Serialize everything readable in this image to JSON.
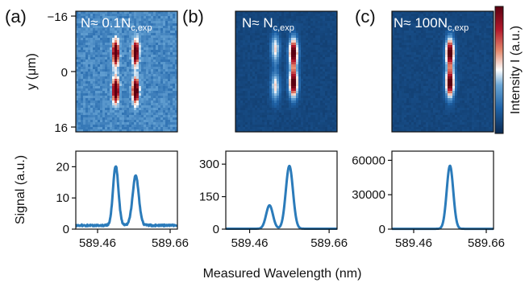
{
  "panels": [
    {
      "letter": "(a)",
      "annotation": {
        "main": "N≈ 0.1N",
        "sub": "c,exp"
      }
    },
    {
      "letter": "(b)",
      "annotation": {
        "main": "N≈ N",
        "sub": "c,exp"
      }
    },
    {
      "letter": "(c)",
      "annotation": {
        "main": "N≈ 100N",
        "sub": "c,exp"
      }
    }
  ],
  "image_axis": {
    "ylabel": "y (μm)",
    "ytick_labels": [
      "−16",
      "0",
      "16"
    ]
  },
  "colorbar": {
    "label": "Intensity I (a.u.)",
    "colors": [
      "#0b2a52",
      "#1f63a8",
      "#6aa6d6",
      "#ffffff",
      "#e48a6f",
      "#b2182b",
      "#5a0011"
    ]
  },
  "signal_axis": {
    "ylabel": "Signal (a.u.)",
    "xlabel": "Measured Wavelength (nm)",
    "xtick_labels": [
      "589.46",
      "589.66"
    ]
  },
  "line_color": "#2b7bba",
  "chart_data": [
    {
      "type": "line",
      "panel": "(a)",
      "x_range": [
        589.4,
        589.68
      ],
      "ylim": [
        0,
        25
      ],
      "yticks": [
        0,
        10,
        20
      ],
      "peaks": [
        {
          "x": 589.51,
          "amp": 19.0,
          "w": 0.0075
        },
        {
          "x": 589.565,
          "amp": 16.0,
          "w": 0.0085
        }
      ],
      "baseline": 1.2
    },
    {
      "type": "line",
      "panel": "(b)",
      "x_range": [
        589.4,
        589.68
      ],
      "ylim": [
        0,
        360
      ],
      "yticks": [
        0,
        150,
        300
      ],
      "peaks": [
        {
          "x": 589.51,
          "amp": 108,
          "w": 0.0085
        },
        {
          "x": 589.56,
          "amp": 290,
          "w": 0.009
        }
      ],
      "baseline": 2
    },
    {
      "type": "line",
      "panel": "(c)",
      "x_range": [
        589.4,
        589.68
      ],
      "ylim": [
        0,
        68000
      ],
      "yticks": [
        0,
        30000,
        60000
      ],
      "peaks": [
        {
          "x": 589.56,
          "amp": 55000,
          "w": 0.009
        }
      ],
      "baseline": 300
    },
    {
      "type": "heatmap",
      "panel": "(a)",
      "y_range": [
        -16,
        16
      ],
      "spots": [
        {
          "x": 589.51,
          "y": -5,
          "amp": 1.0
        },
        {
          "x": 589.565,
          "y": -5,
          "amp": 0.9
        },
        {
          "x": 589.51,
          "y": 5,
          "amp": 1.0
        },
        {
          "x": 589.565,
          "y": 5,
          "amp": 0.95
        }
      ]
    },
    {
      "type": "heatmap",
      "panel": "(b)",
      "y_range": [
        -16,
        16
      ],
      "spots": [
        {
          "x": 589.51,
          "y": -6,
          "amp": 0.45
        },
        {
          "x": 589.56,
          "y": -5,
          "amp": 1.0
        },
        {
          "x": 589.51,
          "y": 4,
          "amp": 0.45
        },
        {
          "x": 589.56,
          "y": 3,
          "amp": 1.0
        }
      ]
    },
    {
      "type": "heatmap",
      "panel": "(c)",
      "y_range": [
        -16,
        16
      ],
      "spots": [
        {
          "x": 589.56,
          "y": -5,
          "amp": 1.0
        },
        {
          "x": 589.56,
          "y": 3,
          "amp": 1.0
        }
      ]
    }
  ]
}
